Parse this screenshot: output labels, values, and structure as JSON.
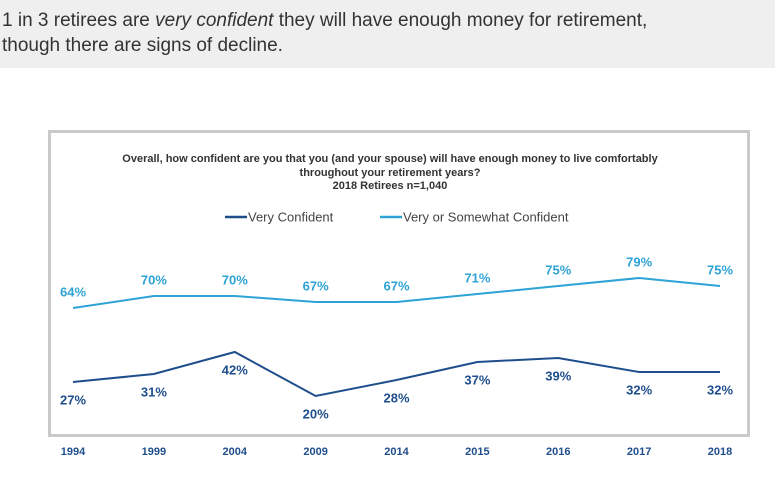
{
  "header": {
    "title_parts": [
      "1 in 3 retirees are ",
      "very confident",
      " they will have enough money for retirement, though there are signs of decline."
    ]
  },
  "chart_data": {
    "type": "line",
    "title": "Overall, how confident are you that you (and your spouse) will have enough money to live comfortably throughout your retirement years?",
    "subtitle": "2018 Retirees n=1,040",
    "categories": [
      "1994",
      "1999",
      "2004",
      "2009",
      "2014",
      "2015",
      "2016",
      "2017",
      "2018"
    ],
    "series": [
      {
        "name": "Very Confident",
        "color": "#1f4e8c",
        "values": [
          27,
          31,
          42,
          20,
          28,
          37,
          39,
          32,
          32
        ],
        "value_labels": [
          "27%",
          "31%",
          "42%",
          "20%",
          "28%",
          "37%",
          "39%",
          "32%",
          "32%"
        ]
      },
      {
        "name": "Very or Somewhat Confident",
        "color": "#2ea3d6",
        "values": [
          64,
          70,
          70,
          67,
          67,
          71,
          75,
          79,
          75
        ],
        "value_labels": [
          "64%",
          "70%",
          "70%",
          "67%",
          "67%",
          "71%",
          "75%",
          "79%",
          "75%"
        ]
      }
    ]
  }
}
